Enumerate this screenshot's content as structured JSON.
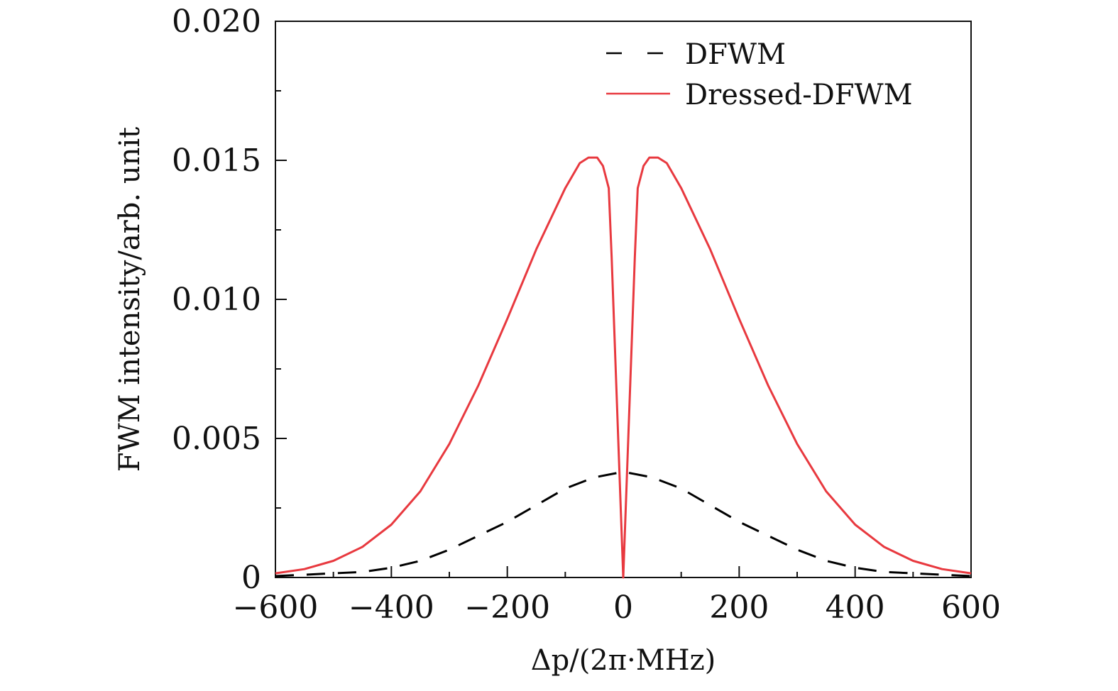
{
  "chart_data": {
    "type": "line",
    "title": "",
    "xlabel": "Δp/(2π·MHz)",
    "ylabel": "FWM intensity/arb. unit",
    "xlim": [
      -600,
      600
    ],
    "ylim": [
      0,
      0.02
    ],
    "xticks": [
      -600,
      -400,
      -200,
      0,
      200,
      400,
      600
    ],
    "xtick_labels": [
      "−600",
      "−400",
      "−200",
      "0",
      "200",
      "400",
      "600"
    ],
    "yticks": [
      0,
      0.005,
      0.01,
      0.015,
      0.02
    ],
    "ytick_labels": [
      "0",
      "0.005",
      "0.010",
      "0.015",
      "0.020"
    ],
    "x_minor_step": 100,
    "y_minor_step": 0.0025,
    "grid": false,
    "legend_position": "top-right",
    "series": [
      {
        "name": "DFWM",
        "style": "dashed",
        "color": "#000000",
        "x": [
          -600,
          -550,
          -500,
          -450,
          -400,
          -350,
          -300,
          -250,
          -200,
          -150,
          -100,
          -50,
          0,
          50,
          100,
          150,
          200,
          250,
          300,
          350,
          400,
          450,
          500,
          550,
          600
        ],
        "y": [
          5e-05,
          0.0001,
          0.00015,
          0.0002,
          0.00035,
          0.0006,
          0.001,
          0.0015,
          0.002,
          0.0026,
          0.0032,
          0.0036,
          0.0038,
          0.0036,
          0.0032,
          0.0026,
          0.002,
          0.0015,
          0.001,
          0.0006,
          0.00035,
          0.0002,
          0.00015,
          0.0001,
          5e-05
        ]
      },
      {
        "name": "Dressed-DFWM",
        "style": "solid",
        "color": "#e8393f",
        "x": [
          -600,
          -550,
          -500,
          -450,
          -400,
          -350,
          -300,
          -250,
          -200,
          -150,
          -100,
          -75,
          -60,
          -45,
          -35,
          -25,
          -20,
          0,
          20,
          25,
          35,
          45,
          60,
          75,
          100,
          150,
          200,
          250,
          300,
          350,
          400,
          450,
          500,
          550,
          600
        ],
        "y": [
          0.00015,
          0.0003,
          0.0006,
          0.0011,
          0.0019,
          0.0031,
          0.0048,
          0.0069,
          0.0093,
          0.0118,
          0.014,
          0.0149,
          0.0151,
          0.0151,
          0.0148,
          0.014,
          0.0115,
          0.0,
          0.0115,
          0.014,
          0.0148,
          0.0151,
          0.0151,
          0.0149,
          0.014,
          0.0118,
          0.0093,
          0.0069,
          0.0048,
          0.0031,
          0.0019,
          0.0011,
          0.0006,
          0.0003,
          0.00015
        ]
      }
    ]
  }
}
